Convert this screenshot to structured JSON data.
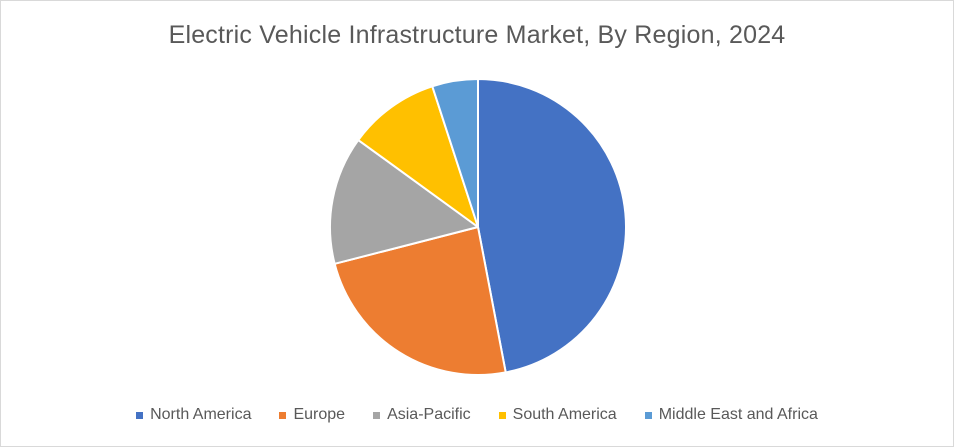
{
  "chart_data": {
    "type": "pie",
    "title": "Electric Vehicle Infrastructure Market, By Region, 2024",
    "categories": [
      "North America",
      "Europe",
      "Asia-Pacific",
      "South America",
      "Middle East and Africa"
    ],
    "values": [
      47,
      24,
      14,
      10,
      5
    ],
    "colors": [
      "#4472C4",
      "#ED7D31",
      "#A5A5A5",
      "#FFC000",
      "#5B9BD5"
    ],
    "start_angle_deg": 0,
    "direction": "clockwise",
    "legend_position": "bottom"
  }
}
